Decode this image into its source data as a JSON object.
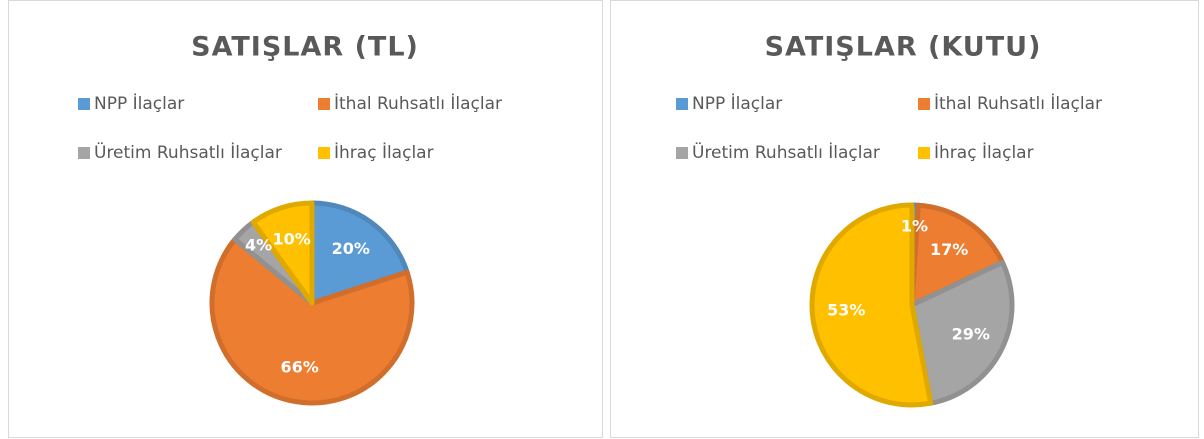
{
  "chart_data": [
    {
      "type": "pie",
      "title": "SATIŞLAR (TL)",
      "categories": [
        "NPP İlaçlar",
        "İthal Ruhsatlı İlaçlar",
        "Üretim Ruhsatlı İlaçlar",
        "İhraç İlaçlar"
      ],
      "values": [
        20,
        66,
        4,
        10
      ],
      "value_labels": [
        "20%",
        "66%",
        "4%",
        "10%"
      ],
      "colors": [
        "#5b9bd5",
        "#ed7d31",
        "#a5a5a5",
        "#ffc000"
      ],
      "legend": "top"
    },
    {
      "type": "pie",
      "title": "SATIŞLAR (KUTU)",
      "categories": [
        "NPP İlaçlar",
        "İthal Ruhsatlı İlaçlar",
        "Üretim Ruhsatlı İlaçlar",
        "İhraç İlaçlar"
      ],
      "values": [
        1,
        17,
        29,
        53
      ],
      "value_labels": [
        "1%",
        "17%",
        "29%",
        "53%"
      ],
      "colors": [
        "#5b9bd5",
        "#ed7d31",
        "#a5a5a5",
        "#ffc000"
      ],
      "legend": "top"
    }
  ]
}
